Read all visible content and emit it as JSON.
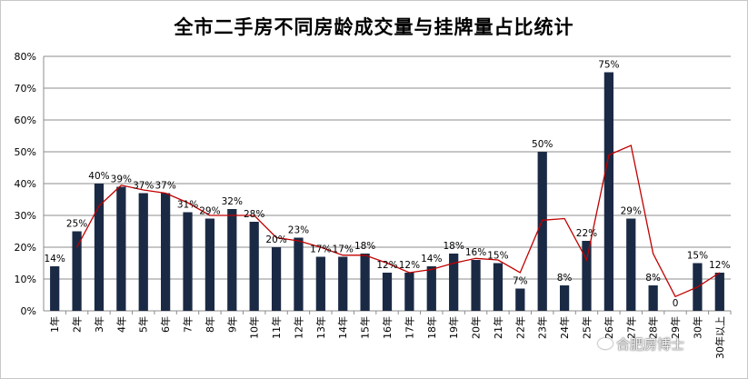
{
  "chart_data": {
    "type": "bar",
    "title": "全市二手房不同房龄成交量与挂牌量占比统计",
    "xlabel": "",
    "ylabel": "",
    "ylim": [
      0,
      80
    ],
    "yticks": [
      "0%",
      "10%",
      "20%",
      "30%",
      "40%",
      "50%",
      "60%",
      "70%",
      "80%"
    ],
    "grid": true,
    "categories": [
      "1年",
      "2年",
      "3年",
      "4年",
      "5年",
      "6年",
      "7年",
      "8年",
      "9年",
      "10年",
      "11年",
      "12年",
      "13年",
      "14年",
      "15年",
      "16年",
      "17年",
      "18年",
      "19年",
      "20年",
      "21年",
      "22年",
      "23年",
      "24年",
      "25年",
      "26年",
      "27年",
      "28年",
      "29年",
      "30年",
      "30年以上"
    ],
    "series": [
      {
        "type": "bar",
        "color": "#1b2a44",
        "values": [
          14,
          25,
          40,
          39,
          37,
          37,
          31,
          29,
          32,
          28,
          20,
          23,
          17,
          17,
          18,
          12,
          12,
          14,
          18,
          16,
          15,
          7,
          50,
          8,
          22,
          75,
          29,
          8,
          0,
          15,
          12
        ],
        "labels": [
          "14%",
          "25%",
          "40%",
          "39%",
          "37%",
          "37%",
          "31%",
          "29%",
          "32%",
          "28%",
          "20%",
          "23%",
          "17%",
          "17%",
          "18%",
          "12%",
          "12%",
          "14%",
          "18%",
          "16%",
          "15%",
          "7%",
          "50%",
          "8%",
          "22%",
          "75%",
          "29%",
          "8%",
          "0",
          "15%",
          "12%"
        ]
      },
      {
        "type": "line",
        "color": "#c00000",
        "values": [
          null,
          20,
          33,
          39.5,
          38,
          37,
          34,
          30,
          30,
          30,
          23,
          22,
          20,
          17.5,
          17.5,
          15,
          12,
          13,
          15,
          16.5,
          16,
          12,
          28.5,
          29,
          16,
          49,
          52,
          18,
          4.5,
          7.5,
          12
        ]
      }
    ],
    "watermark": "合肥房博士"
  }
}
